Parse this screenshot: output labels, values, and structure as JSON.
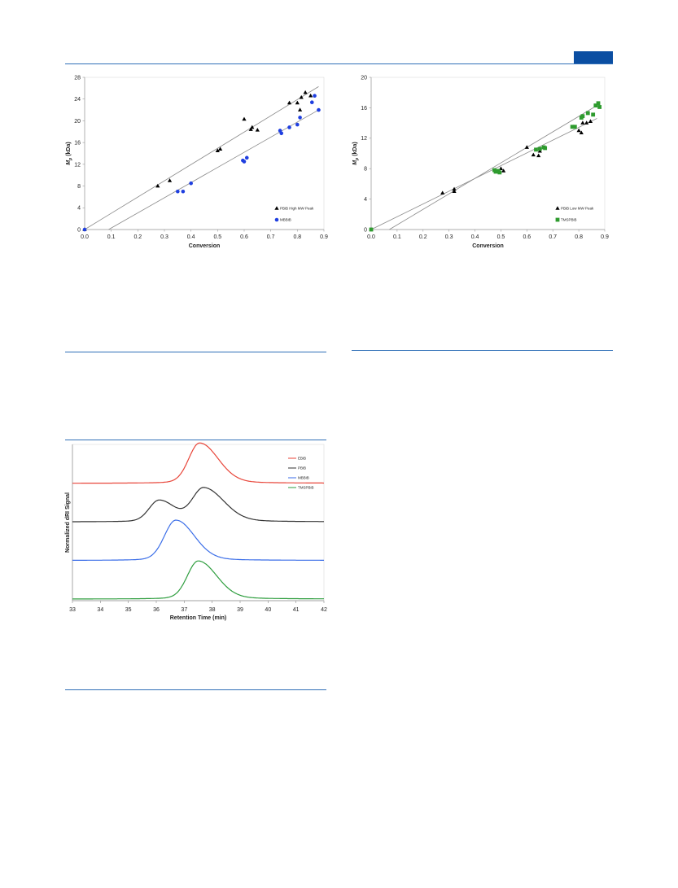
{
  "header_badge_color": "#0b4ea2",
  "rule_color": "#2f6fb7",
  "chart_data": [
    {
      "type": "scatter",
      "xlabel": "Conversion",
      "ylabel_main": "M",
      "ylabel_sub": "p",
      "ylabel_unit": "(kDa)",
      "xlim": [
        0.0,
        0.9
      ],
      "ylim": [
        0,
        28
      ],
      "xticks": [
        "0.0",
        "0.1",
        "0.2",
        "0.3",
        "0.4",
        "0.5",
        "0.6",
        "0.7",
        "0.8",
        "0.9"
      ],
      "yticks": [
        "0",
        "4",
        "8",
        "12",
        "16",
        "20",
        "24",
        "28"
      ],
      "legend_position": "bottom-right",
      "series": [
        {
          "name": "PBiB High MW Peak",
          "marker": "triangle",
          "color": "#000000",
          "points": [
            [
              0.0,
              0.0
            ],
            [
              0.275,
              8.0
            ],
            [
              0.32,
              9.0
            ],
            [
              0.5,
              14.5
            ],
            [
              0.51,
              14.8
            ],
            [
              0.6,
              20.3
            ],
            [
              0.625,
              18.4
            ],
            [
              0.63,
              18.8
            ],
            [
              0.65,
              18.3
            ],
            [
              0.77,
              23.3
            ],
            [
              0.8,
              23.3
            ],
            [
              0.81,
              22.0
            ],
            [
              0.815,
              24.3
            ],
            [
              0.83,
              25.2
            ],
            [
              0.85,
              24.6
            ]
          ],
          "fit": [
            [
              0.0,
              0.0
            ],
            [
              0.88,
              26.3
            ]
          ]
        },
        {
          "name": "MBBiB",
          "marker": "circle",
          "color": "#1f3fe0",
          "points": [
            [
              0.0,
              0.0
            ],
            [
              0.35,
              7.0
            ],
            [
              0.37,
              7.0
            ],
            [
              0.4,
              8.5
            ],
            [
              0.595,
              12.7
            ],
            [
              0.6,
              12.5
            ],
            [
              0.61,
              13.2
            ],
            [
              0.735,
              18.2
            ],
            [
              0.74,
              17.7
            ],
            [
              0.77,
              18.8
            ],
            [
              0.8,
              19.3
            ],
            [
              0.81,
              20.6
            ],
            [
              0.855,
              23.4
            ],
            [
              0.865,
              24.6
            ],
            [
              0.88,
              22.0
            ]
          ],
          "fit": [
            [
              0.09,
              0.0
            ],
            [
              0.88,
              22.0
            ]
          ]
        }
      ]
    },
    {
      "type": "scatter",
      "xlabel": "Conversion",
      "ylabel_main": "M",
      "ylabel_sub": "p",
      "ylabel_unit": "(kDa)",
      "xlim": [
        0.0,
        0.9
      ],
      "ylim": [
        0,
        20
      ],
      "xticks": [
        "0.0",
        "0.1",
        "0.2",
        "0.3",
        "0.4",
        "0.5",
        "0.6",
        "0.7",
        "0.8",
        "0.9"
      ],
      "yticks": [
        "0",
        "4",
        "8",
        "12",
        "16",
        "20"
      ],
      "legend_position": "bottom-right",
      "series": [
        {
          "name": "PBiB Low MW Peak",
          "marker": "triangle",
          "color": "#000000",
          "points": [
            [
              0.0,
              0.0
            ],
            [
              0.275,
              4.8
            ],
            [
              0.32,
              5.0
            ],
            [
              0.32,
              5.3
            ],
            [
              0.48,
              7.6
            ],
            [
              0.5,
              8.0
            ],
            [
              0.51,
              7.7
            ],
            [
              0.6,
              10.8
            ],
            [
              0.625,
              9.8
            ],
            [
              0.645,
              9.7
            ],
            [
              0.65,
              10.3
            ],
            [
              0.8,
              13.0
            ],
            [
              0.81,
              12.7
            ],
            [
              0.815,
              14.0
            ],
            [
              0.83,
              14.0
            ],
            [
              0.845,
              14.2
            ]
          ],
          "fit": [
            [
              0.0,
              0.0
            ],
            [
              0.87,
              14.6
            ]
          ]
        },
        {
          "name": "TMSPBiB",
          "marker": "square",
          "color": "#2e9b2e",
          "points": [
            [
              0.0,
              0.0
            ],
            [
              0.475,
              7.8
            ],
            [
              0.48,
              7.6
            ],
            [
              0.49,
              7.7
            ],
            [
              0.495,
              7.5
            ],
            [
              0.635,
              10.5
            ],
            [
              0.65,
              10.6
            ],
            [
              0.665,
              10.8
            ],
            [
              0.67,
              10.7
            ],
            [
              0.775,
              13.5
            ],
            [
              0.785,
              13.5
            ],
            [
              0.81,
              14.7
            ],
            [
              0.815,
              14.9
            ],
            [
              0.835,
              15.3
            ],
            [
              0.855,
              15.1
            ],
            [
              0.865,
              16.3
            ],
            [
              0.875,
              16.6
            ],
            [
              0.88,
              16.1
            ]
          ],
          "fit": [
            [
              0.07,
              0.0
            ],
            [
              0.87,
              16.3
            ]
          ]
        }
      ]
    },
    {
      "type": "line",
      "xlabel": "Retention Time (min)",
      "ylabel": "Normalized dRI Signal",
      "xlim": [
        33,
        42
      ],
      "xticks": [
        "33",
        "34",
        "35",
        "36",
        "37",
        "38",
        "39",
        "40",
        "41",
        "42"
      ],
      "legend_position": "top-right",
      "series": [
        {
          "name": "EBiB",
          "color": "#e8463a",
          "offset": 3,
          "peaks": [
            [
              37.55,
              0.72,
              0.38,
              0.65
            ]
          ]
        },
        {
          "name": "PBiB",
          "color": "#333333",
          "offset": 2,
          "peaks": [
            [
              36.1,
              0.38,
              0.35,
              0.55
            ],
            [
              37.7,
              0.6,
              0.4,
              0.7
            ]
          ]
        },
        {
          "name": "MBBiB",
          "color": "#3b6ee8",
          "offset": 1,
          "peaks": [
            [
              36.7,
              0.72,
              0.4,
              0.65
            ]
          ]
        },
        {
          "name": "TMSPBiB",
          "color": "#2f9e3f",
          "offset": 0,
          "peaks": [
            [
              37.5,
              0.68,
              0.38,
              0.65
            ]
          ]
        }
      ]
    }
  ]
}
